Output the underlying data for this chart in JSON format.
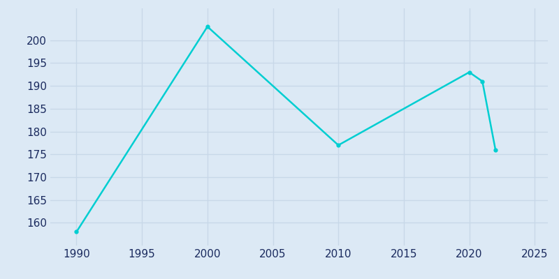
{
  "years": [
    1990,
    2000,
    2010,
    2020,
    2021,
    2022
  ],
  "population": [
    158,
    203,
    177,
    193,
    191,
    176
  ],
  "line_color": "#00CED1",
  "bg_color": "#dce9f5",
  "grid_color": "#c8d8e8",
  "xlabel": "",
  "ylabel": "",
  "xlim": [
    1988,
    2026
  ],
  "ylim": [
    155,
    207
  ],
  "xticks": [
    1990,
    1995,
    2000,
    2005,
    2010,
    2015,
    2020,
    2025
  ],
  "yticks": [
    160,
    165,
    170,
    175,
    180,
    185,
    190,
    195,
    200
  ],
  "tick_label_color": "#1a2a5e",
  "line_width": 1.8,
  "marker": "o",
  "marker_size": 3.5,
  "tick_fontsize": 11
}
